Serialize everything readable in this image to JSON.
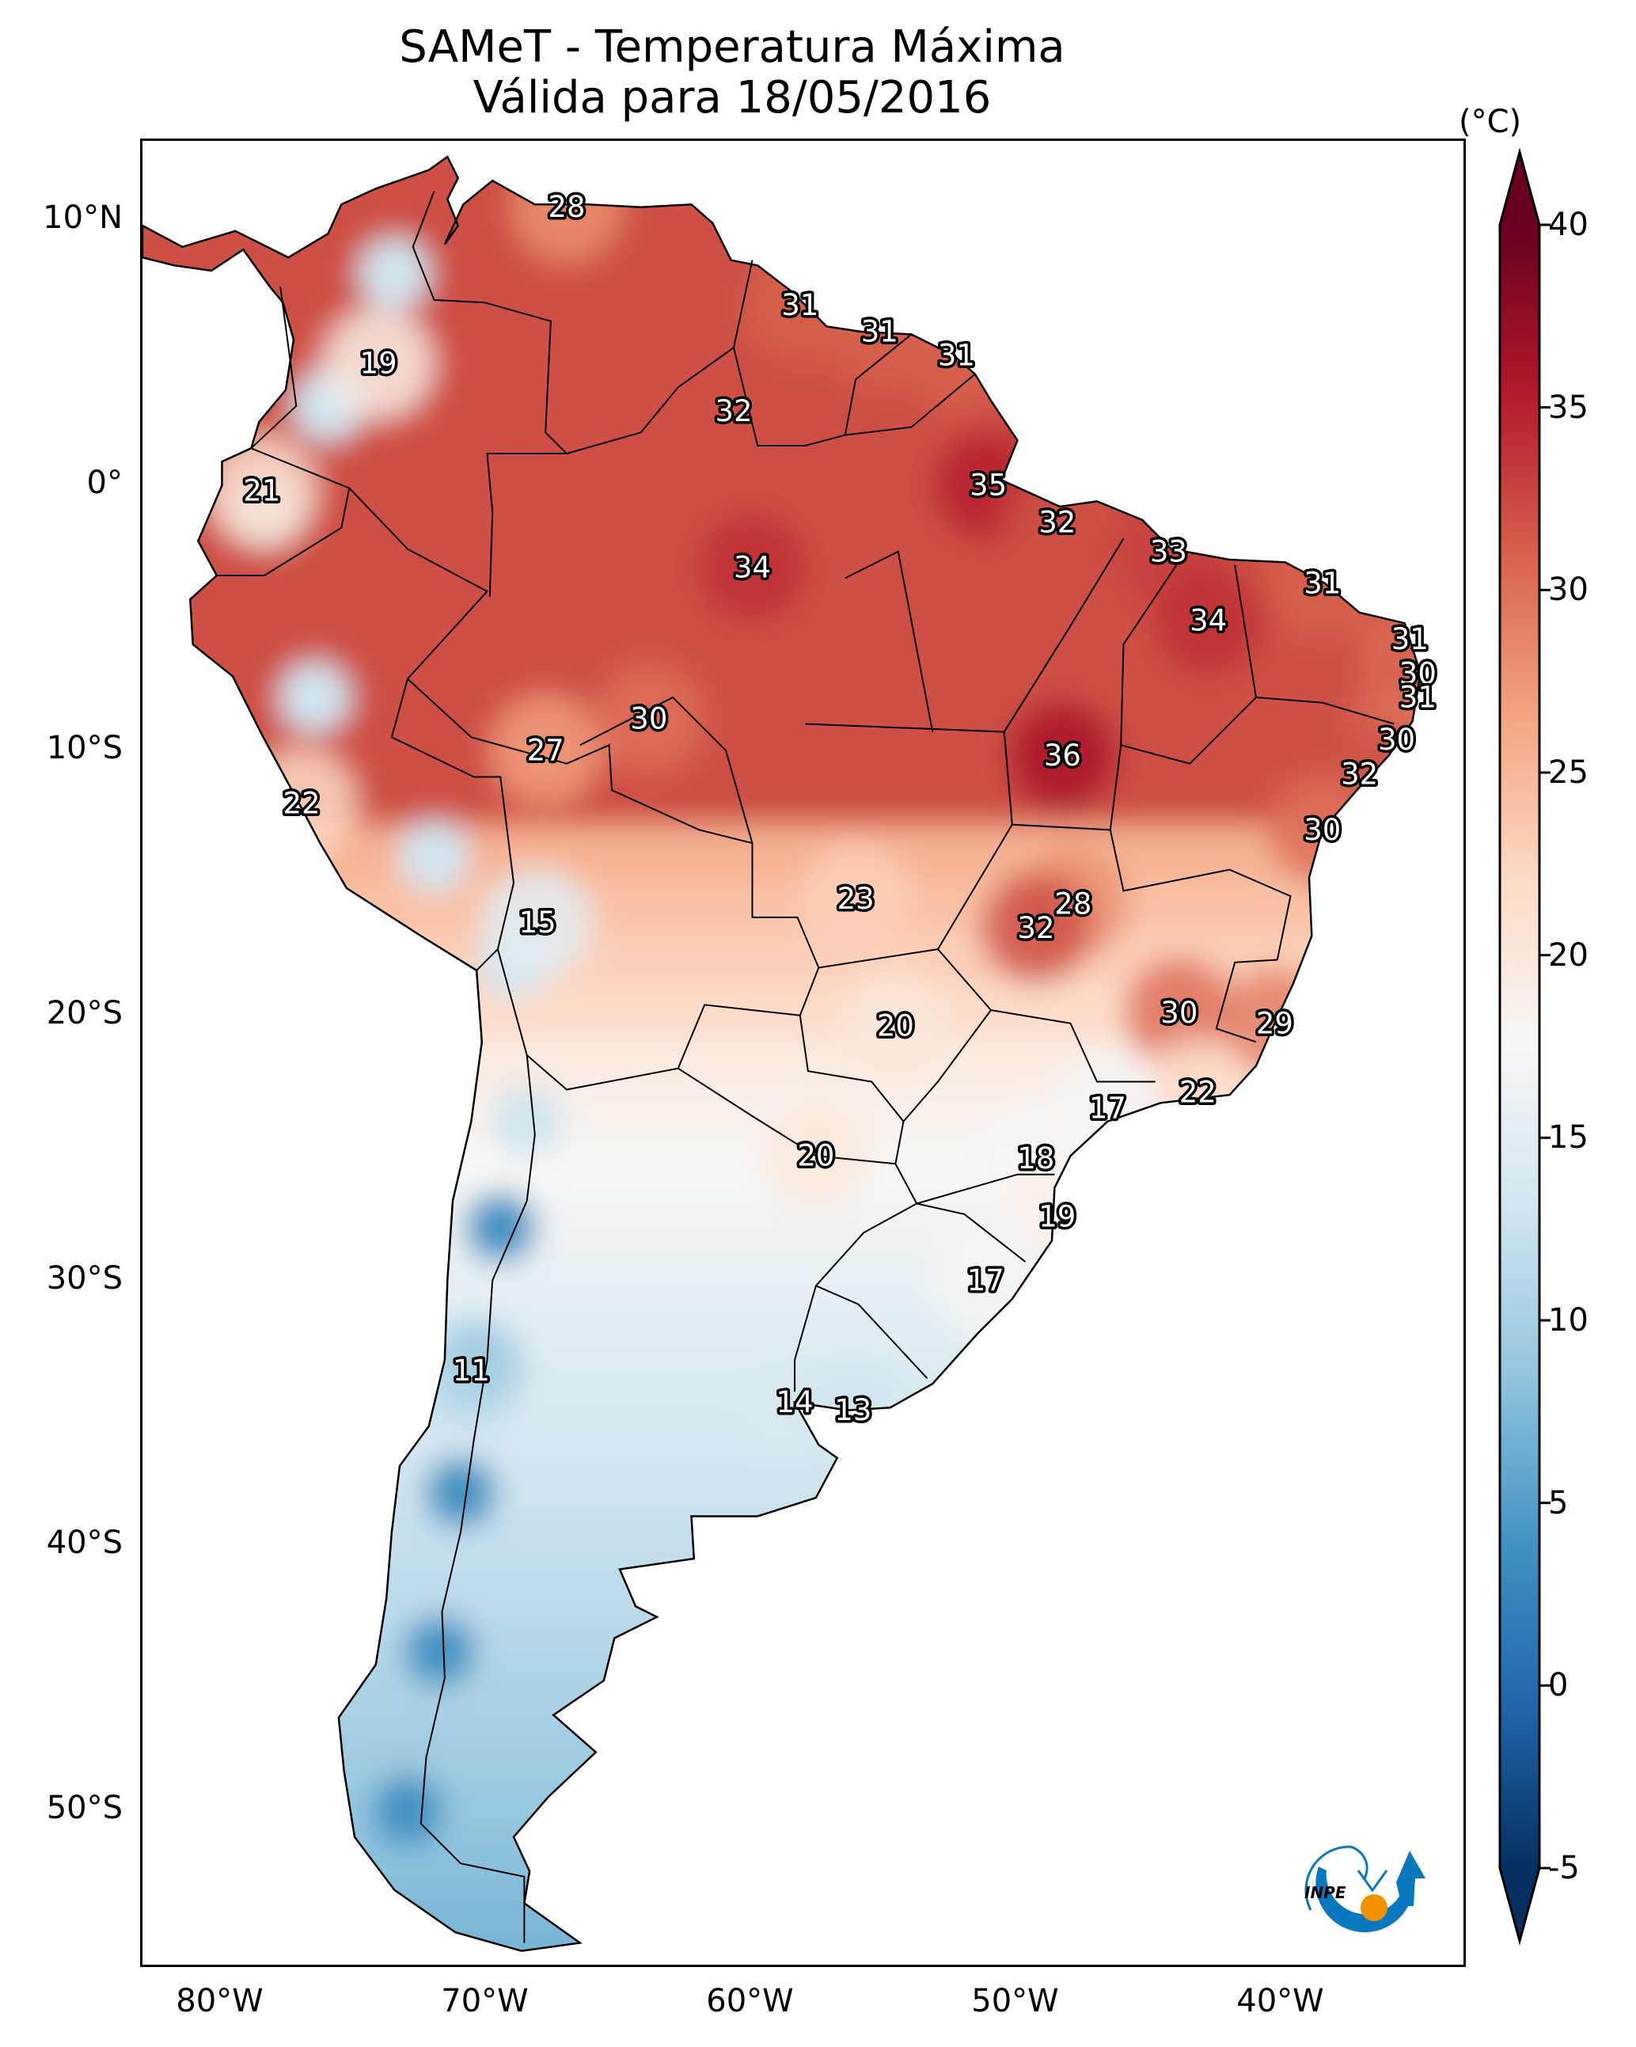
{
  "title": {
    "line1": "SAMeT - Temperatura Máxima",
    "line2": "Válida para 18/05/2016"
  },
  "logo": {
    "text": "INPE",
    "colors": {
      "blue": "#0a78be",
      "orange": "#f39200"
    }
  },
  "chart_data": {
    "type": "heatmap",
    "title": "SAMeT - Temperatura Máxima",
    "subtitle": "Válida para 18/05/2016",
    "xlabel": "",
    "ylabel": "",
    "x_ticks": [
      "80°W",
      "70°W",
      "60°W",
      "50°W",
      "40°W"
    ],
    "x_tick_values": [
      -80,
      -70,
      -60,
      -50,
      -40
    ],
    "y_ticks": [
      "10°N",
      "0°",
      "10°S",
      "20°S",
      "30°S",
      "40°S",
      "50°S"
    ],
    "y_tick_values": [
      10,
      0,
      -10,
      -20,
      -30,
      -40,
      -50
    ],
    "xlim": [
      -83,
      -33
    ],
    "ylim": [
      -56,
      13
    ],
    "colorbar": {
      "label": "(°C)",
      "ticks": [
        "40",
        "35",
        "30",
        "25",
        "20",
        "15",
        "10",
        "5",
        "0",
        "-5"
      ],
      "tick_values": [
        40,
        35,
        30,
        25,
        20,
        15,
        10,
        5,
        0,
        -5
      ],
      "range": [
        -5,
        40
      ],
      "extend": "both",
      "colormap": "RdBu_r",
      "stops": [
        "#053061",
        "#2166ac",
        "#4393c3",
        "#92c5de",
        "#d1e5f0",
        "#f7f7f7",
        "#fddbc7",
        "#f4a582",
        "#d6604d",
        "#b2182b",
        "#67001f"
      ]
    },
    "city_values": [
      {
        "value": 28,
        "lon": -67.0,
        "lat": 10.5
      },
      {
        "value": 19,
        "lon": -74.1,
        "lat": 4.6
      },
      {
        "value": 21,
        "lon": -78.5,
        "lat": -0.2
      },
      {
        "value": 31,
        "lon": -58.2,
        "lat": 6.8
      },
      {
        "value": 31,
        "lon": -55.2,
        "lat": 5.8
      },
      {
        "value": 31,
        "lon": -52.3,
        "lat": 4.9
      },
      {
        "value": 32,
        "lon": -60.7,
        "lat": 2.8
      },
      {
        "value": 35,
        "lon": -51.1,
        "lat": 0.0
      },
      {
        "value": 32,
        "lon": -48.5,
        "lat": -1.4
      },
      {
        "value": 33,
        "lon": -44.3,
        "lat": -2.5
      },
      {
        "value": 34,
        "lon": -60.0,
        "lat": -3.1
      },
      {
        "value": 31,
        "lon": -38.5,
        "lat": -3.7
      },
      {
        "value": 34,
        "lon": -42.8,
        "lat": -5.1
      },
      {
        "value": 31,
        "lon": -35.2,
        "lat": -5.8
      },
      {
        "value": 30,
        "lon": -34.9,
        "lat": -7.1
      },
      {
        "value": 31,
        "lon": -34.9,
        "lat": -8.0
      },
      {
        "value": 30,
        "lon": -35.7,
        "lat": -9.6
      },
      {
        "value": 32,
        "lon": -37.1,
        "lat": -10.9
      },
      {
        "value": 30,
        "lon": -38.5,
        "lat": -13.0
      },
      {
        "value": 36,
        "lon": -48.3,
        "lat": -10.2
      },
      {
        "value": 30,
        "lon": -63.9,
        "lat": -8.8
      },
      {
        "value": 27,
        "lon": -67.8,
        "lat": -10.0
      },
      {
        "value": 22,
        "lon": -77.0,
        "lat": -12.0
      },
      {
        "value": 15,
        "lon": -68.1,
        "lat": -16.5
      },
      {
        "value": 23,
        "lon": -56.1,
        "lat": -15.6
      },
      {
        "value": 28,
        "lon": -47.9,
        "lat": -15.8
      },
      {
        "value": 32,
        "lon": -49.3,
        "lat": -16.7
      },
      {
        "value": 30,
        "lon": -43.9,
        "lat": -19.9
      },
      {
        "value": 29,
        "lon": -40.3,
        "lat": -20.3
      },
      {
        "value": 20,
        "lon": -54.6,
        "lat": -20.4
      },
      {
        "value": 22,
        "lon": -43.2,
        "lat": -22.9
      },
      {
        "value": 17,
        "lon": -46.6,
        "lat": -23.5
      },
      {
        "value": 20,
        "lon": -57.6,
        "lat": -25.3
      },
      {
        "value": 18,
        "lon": -49.3,
        "lat": -25.4
      },
      {
        "value": 19,
        "lon": -48.5,
        "lat": -27.6
      },
      {
        "value": 17,
        "lon": -51.2,
        "lat": -30.0
      },
      {
        "value": 11,
        "lon": -70.6,
        "lat": -33.4
      },
      {
        "value": 14,
        "lon": -58.4,
        "lat": -34.6
      },
      {
        "value": 13,
        "lon": -56.2,
        "lat": -34.9
      }
    ]
  }
}
